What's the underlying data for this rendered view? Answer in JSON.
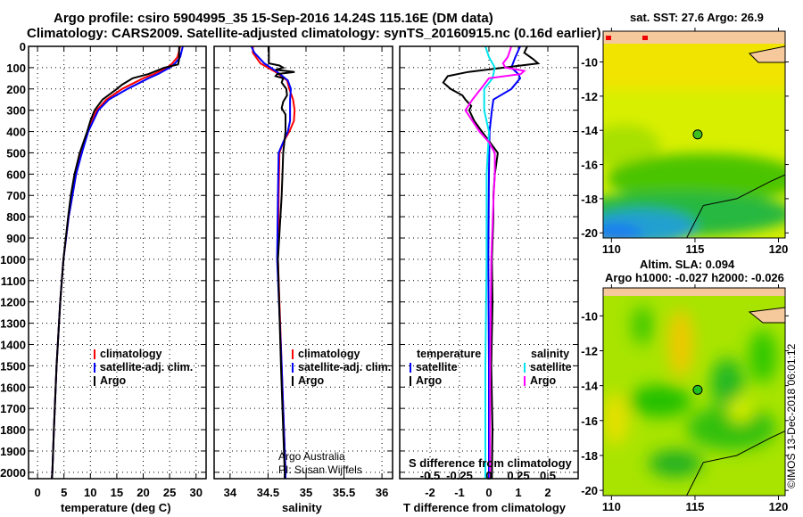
{
  "title_line1": "Argo profile: csiro 5904995_35 15-Sep-2016 14.24S 115.16E (DM data)",
  "title_line2": "Climatology: CARS2009. Satellite-adjusted climatology: synTS_20160915.nc (0.16d earlier)",
  "colors": {
    "climatology": "#ff0000",
    "satellite": "#0000ff",
    "argo": "#000000",
    "sal_satellite": "#00e5ee",
    "sal_argo": "#ff00ff",
    "land": "#f5c99b"
  },
  "legend_profiles": [
    "climatology",
    "satellite-adj. clim.",
    "Argo"
  ],
  "legend_diff": {
    "temperature_title": "temperature",
    "salinity_title": "salinity",
    "satellite": "satellite",
    "argo": "Argo"
  },
  "credit": {
    "line1": "Argo Australia",
    "line2": "PI: Susan Wijffels"
  },
  "stamp": "©IMOS 13-Dec-2018 06:01:12",
  "chart_data": [
    {
      "type": "line",
      "name": "temperature",
      "xlabel": "temperature (deg C)",
      "ylabel": "",
      "xlim": [
        -1.7,
        31.9
      ],
      "ylim": [
        0,
        2030
      ],
      "xticks": [
        0,
        5,
        10,
        15,
        20,
        25,
        30
      ],
      "yticks": [
        0,
        100,
        200,
        300,
        400,
        500,
        600,
        700,
        800,
        900,
        1000,
        1100,
        1200,
        1300,
        1400,
        1500,
        1600,
        1700,
        1800,
        1900,
        2000
      ],
      "grid": true,
      "series": [
        {
          "name": "climatology",
          "depth": [
            0,
            50,
            80,
            100,
            130,
            150,
            200,
            250,
            300,
            400,
            500,
            600,
            700,
            800,
            1000,
            1200,
            1500,
            1800,
            2000,
            2030
          ],
          "values": [
            27,
            26.5,
            25.5,
            24.5,
            22,
            20,
            16,
            13,
            11.2,
            9.5,
            8.3,
            7.3,
            6.6,
            5.9,
            4.9,
            4.3,
            3.6,
            3.1,
            2.8,
            2.7
          ]
        },
        {
          "name": "satellite-adj. clim.",
          "depth": [
            0,
            50,
            80,
            100,
            130,
            150,
            200,
            250,
            300,
            400,
            500,
            600,
            700,
            800,
            1000,
            1200,
            1500,
            1800,
            2000,
            2030
          ],
          "values": [
            27.5,
            27,
            26,
            25,
            22.8,
            21,
            17,
            13.5,
            11.5,
            9.6,
            8.4,
            7.3,
            6.6,
            5.9,
            4.9,
            4.3,
            3.6,
            3.1,
            2.8,
            2.7
          ]
        },
        {
          "name": "Argo",
          "depth": [
            0,
            60,
            85,
            100,
            130,
            150,
            180,
            200,
            250,
            300,
            350,
            400,
            500,
            600,
            700,
            800,
            1000,
            1200,
            1500,
            1800,
            2000,
            2030
          ],
          "values": [
            26.8,
            26.8,
            26.6,
            24,
            21,
            18,
            16,
            15,
            12.3,
            10.8,
            10,
            9.4,
            8,
            7,
            6.3,
            5.8,
            4.9,
            4.3,
            3.6,
            3.1,
            2.8,
            2.7
          ]
        }
      ]
    },
    {
      "type": "line",
      "name": "salinity",
      "xlabel": "salinity",
      "xlim": [
        33.79,
        36.14
      ],
      "ylim": [
        0,
        2030
      ],
      "xticks": [
        34,
        34.5,
        35,
        35.5,
        36
      ],
      "grid": true,
      "series": [
        {
          "name": "climatology",
          "depth": [
            0,
            30,
            80,
            120,
            160,
            200,
            250,
            300,
            350,
            400,
            450,
            500,
            700,
            1000,
            1500,
            2000,
            2030
          ],
          "values": [
            34.3,
            34.3,
            34.4,
            34.6,
            34.75,
            34.78,
            34.83,
            34.85,
            34.84,
            34.78,
            34.7,
            34.65,
            34.64,
            34.63,
            34.68,
            34.73,
            34.73
          ]
        },
        {
          "name": "satellite-adj. clim.",
          "depth": [
            0,
            30,
            80,
            120,
            160,
            200,
            250,
            300,
            350,
            400,
            450,
            500,
            700,
            1000,
            1500,
            2000,
            2030
          ],
          "values": [
            34.28,
            34.32,
            34.45,
            34.62,
            34.76,
            34.8,
            34.79,
            34.79,
            34.79,
            34.76,
            34.7,
            34.64,
            34.63,
            34.62,
            34.68,
            34.73,
            34.73
          ]
        },
        {
          "name": "Argo",
          "depth": [
            0,
            80,
            90,
            100,
            110,
            120,
            130,
            140,
            150,
            170,
            200,
            230,
            260,
            290,
            320,
            350,
            400,
            500,
            600,
            700,
            1000,
            1500,
            2000,
            2030
          ],
          "values": [
            34.51,
            34.51,
            34.65,
            34.7,
            34.6,
            34.85,
            34.62,
            34.6,
            34.7,
            34.68,
            34.74,
            34.75,
            34.7,
            34.68,
            34.73,
            34.73,
            34.73,
            34.7,
            34.69,
            34.68,
            34.63,
            34.67,
            34.72,
            34.72
          ]
        }
      ]
    },
    {
      "type": "line",
      "name": "difference",
      "xlabel": "T difference from climatology",
      "x2label": "S difference from climatology",
      "xlim": [
        -3.03,
        3.03
      ],
      "ylim": [
        0,
        2030
      ],
      "xticks": [
        -2,
        -1,
        0,
        1,
        2
      ],
      "x2ticks": [
        -0.5,
        -0.25,
        0,
        0.25,
        0.5
      ],
      "x2ticklabels": [
        "-0.5",
        "-0.25",
        "0",
        "0.25",
        "0.5"
      ],
      "s_to_t_factor": 4,
      "grid": true,
      "series": [
        {
          "name": "temperature satellite",
          "axis": "T",
          "depth": [
            0,
            50,
            100,
            130,
            150,
            200,
            250,
            300,
            350,
            400,
            600,
            1000,
            1500,
            2030
          ],
          "values": [
            1.06,
            0.9,
            0.76,
            1.0,
            1.06,
            0.76,
            0.15,
            0.1,
            0.06,
            0.02,
            0,
            -0.02,
            0,
            0
          ]
        },
        {
          "name": "temperature Argo",
          "axis": "T",
          "depth": [
            0,
            30,
            60,
            80,
            100,
            120,
            140,
            170,
            200,
            230,
            250,
            280,
            300,
            350,
            400,
            450,
            500,
            550,
            600,
            700,
            800,
            1000,
            1200,
            1500,
            1800,
            2030
          ],
          "values": [
            1.3,
            1.2,
            1.5,
            1.67,
            0.5,
            -0.7,
            -1.4,
            -1.55,
            -1.3,
            -0.9,
            -0.8,
            -0.6,
            -0.67,
            -0.5,
            -0.24,
            0.03,
            0.3,
            0.25,
            0.2,
            0.15,
            0.15,
            0.1,
            0.12,
            0.08,
            0.12,
            0.1
          ]
        },
        {
          "name": "salinity satellite",
          "axis": "S",
          "depth": [
            0,
            50,
            100,
            150,
            200,
            300,
            400,
            600,
            1000,
            1500,
            2030
          ],
          "values": [
            -0.03,
            0.0,
            0.05,
            0.03,
            -0.04,
            -0.04,
            0.0,
            -0.02,
            -0.02,
            -0.03,
            -0.03
          ]
        },
        {
          "name": "salinity Argo",
          "axis": "S",
          "depth": [
            0,
            50,
            80,
            100,
            115,
            130,
            150,
            200,
            250,
            300,
            350,
            400,
            450,
            500,
            600,
            700,
            1000,
            1500,
            2030
          ],
          "values": [
            0.19,
            0.16,
            0.12,
            0.14,
            0.3,
            0.27,
            0.0,
            -0.07,
            -0.14,
            -0.2,
            -0.14,
            -0.08,
            0,
            0.05,
            0.05,
            0.04,
            0.02,
            0.01,
            0.01
          ]
        }
      ]
    },
    {
      "type": "heatmap",
      "name": "sst-map",
      "title": "sat. SST: 27.6 Argo: 26.9",
      "xlim": [
        109.5,
        120.4
      ],
      "ylim": [
        -20.3,
        -8.2
      ],
      "xticks": [
        110,
        115,
        120
      ],
      "yticks": [
        -10,
        -12,
        -14,
        -16,
        -18,
        -20
      ],
      "marker": {
        "lon": 115.16,
        "lat": -14.24
      }
    },
    {
      "type": "heatmap",
      "name": "sla-map",
      "title": "Altim. SLA: 0.094",
      "subtitle": "Argo h1000: -0.027 h2000: -0.026",
      "xlim": [
        109.5,
        120.4
      ],
      "ylim": [
        -20.3,
        -8.4
      ],
      "xticks": [
        110,
        115,
        120
      ],
      "yticks": [
        -10,
        -12,
        -14,
        -16,
        -18,
        -20
      ],
      "marker": {
        "lon": 115.16,
        "lat": -14.24
      }
    }
  ]
}
